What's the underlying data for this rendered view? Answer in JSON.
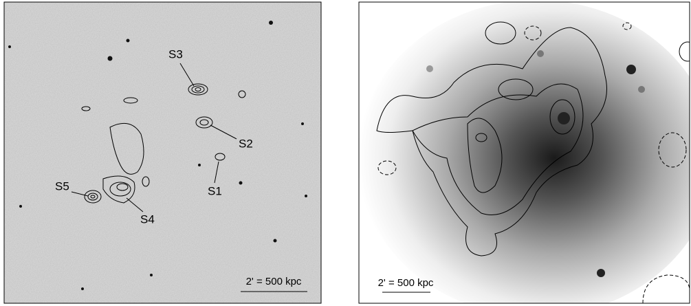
{
  "left_panel": {
    "labels": [
      "S1",
      "S2",
      "S3",
      "S4",
      "S5"
    ],
    "scale_bar": "2' = 500 kpc"
  },
  "right_panel": {
    "scale_bar": "2' = 500 kpc"
  }
}
